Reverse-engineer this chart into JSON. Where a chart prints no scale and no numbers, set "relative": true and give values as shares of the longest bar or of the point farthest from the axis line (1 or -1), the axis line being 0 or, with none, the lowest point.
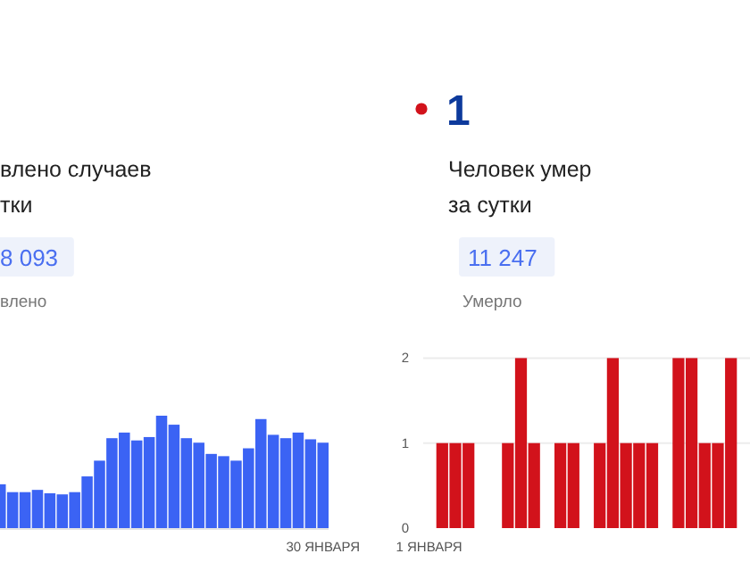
{
  "chart_data": [
    {
      "type": "bar",
      "relative": true,
      "annotations": [
        "влено случаев",
        "тки",
        "8 093",
        "влено"
      ],
      "categories": [
        null,
        null,
        null,
        null,
        null,
        null,
        null,
        null,
        null,
        null,
        null,
        null,
        null,
        null,
        null,
        null,
        null,
        null,
        null,
        null,
        null,
        null,
        null,
        null,
        null,
        null,
        "30 ЯНВАРЯ"
      ],
      "values": [
        0.39,
        0.32,
        0.32,
        0.34,
        0.31,
        0.3,
        0.32,
        0.46,
        0.6,
        0.8,
        0.85,
        0.78,
        0.81,
        1,
        0.92,
        0.8,
        0.76,
        0.66,
        0.64,
        0.6,
        0.71,
        0.97,
        0.83,
        0.8,
        0.85,
        0.79,
        0.76
      ],
      "color": "#3b63f4"
    },
    {
      "type": "bar",
      "grid": "y",
      "ylim": [
        0,
        2
      ],
      "yticks": [
        0,
        1,
        2
      ],
      "annotations": [
        "1",
        "Человек умер",
        "за сутки",
        "11 247",
        "Умерло"
      ],
      "categories": [
        "1 ЯНВАРЯ",
        null,
        null,
        null,
        null,
        null,
        null,
        null,
        null,
        null,
        null,
        null,
        null,
        null,
        null,
        null,
        null,
        null,
        null,
        null,
        null,
        null,
        null,
        null,
        null
      ],
      "values": [
        0,
        1,
        1,
        1,
        0,
        0,
        1,
        2,
        1,
        0,
        1,
        1,
        0,
        1,
        2,
        1,
        1,
        1,
        0,
        2,
        2,
        1,
        1,
        2,
        0
      ],
      "color": "#d2121b"
    }
  ]
}
